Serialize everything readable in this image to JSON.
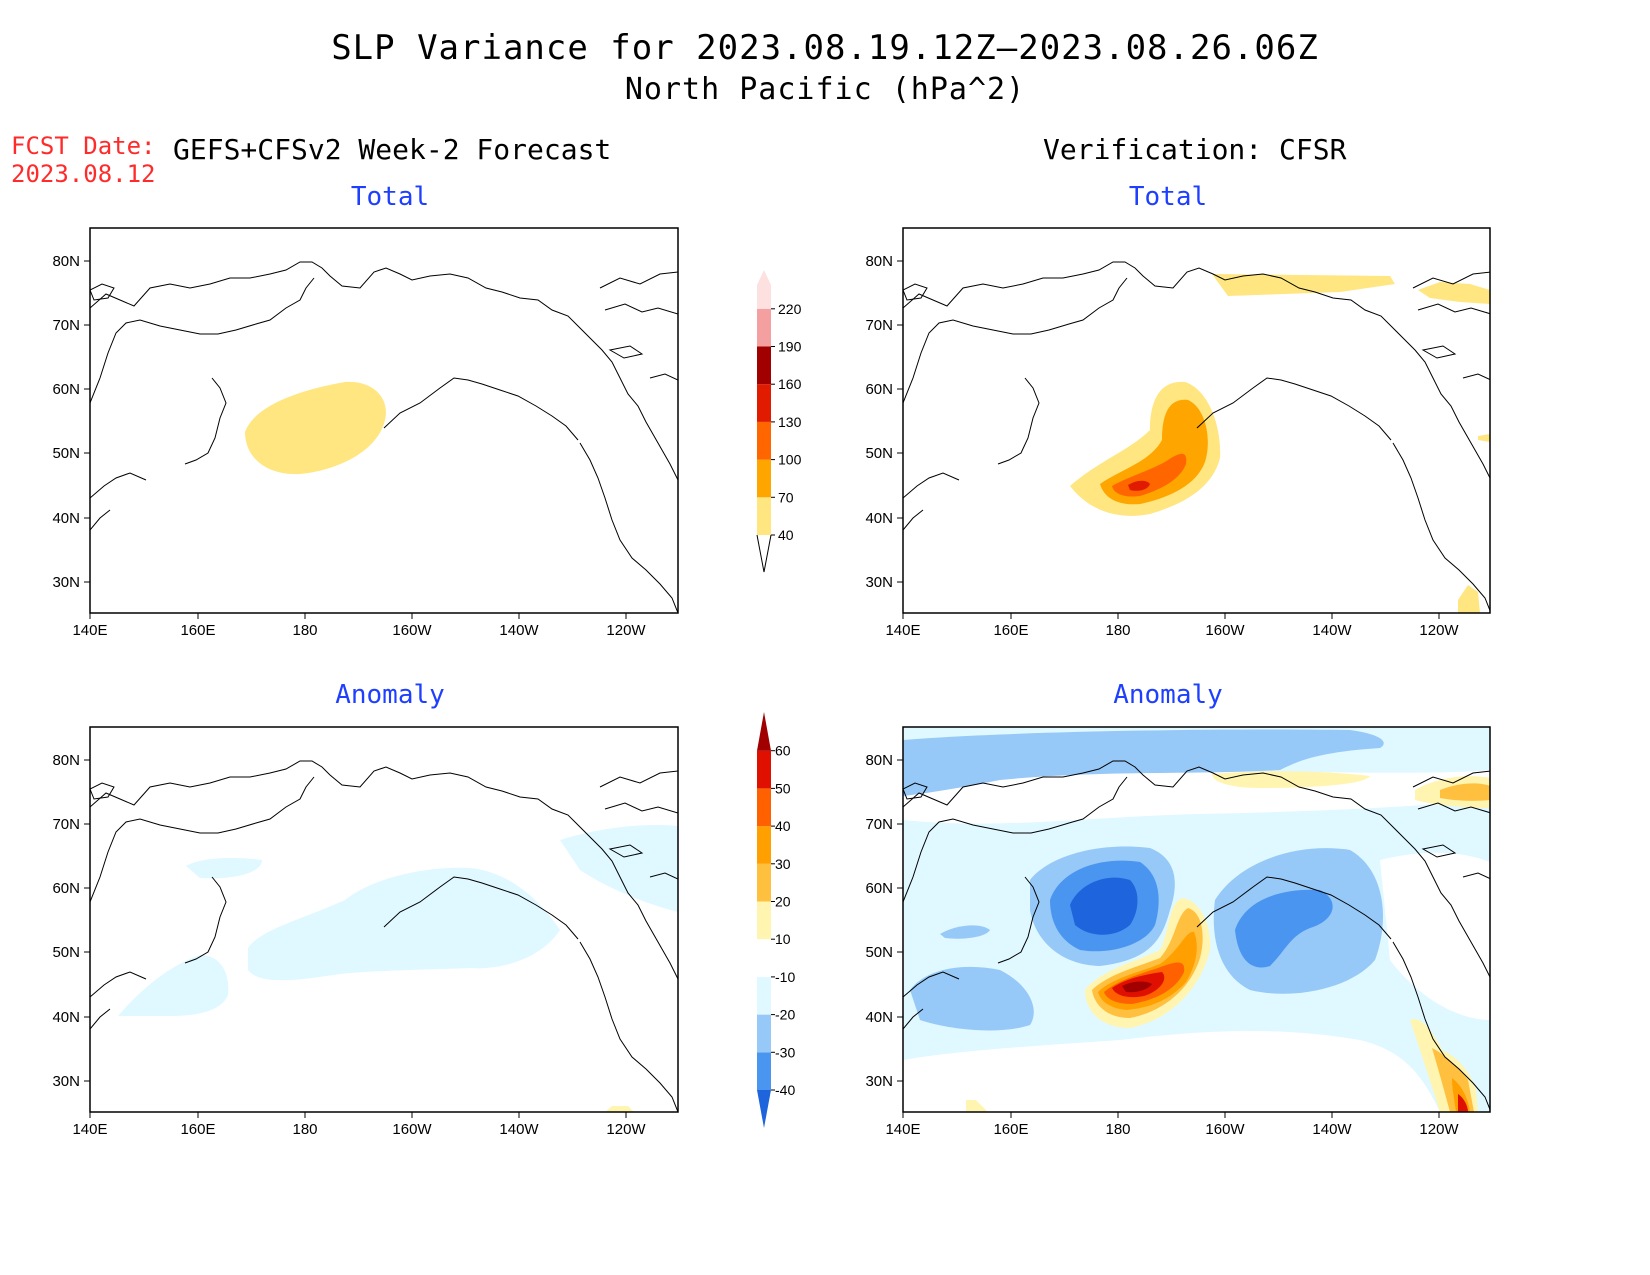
{
  "header": {
    "title": "SLP Variance for 2023.08.19.12Z–2023.08.26.06Z",
    "subtitle": "North Pacific (hPa^2)",
    "fcst_date_label": "FCST Date:",
    "fcst_date_value": "2023.08.12",
    "left_column_title": "GEFS+CFSv2 Week-2 Forecast",
    "right_column_title": "Verification: CFSR"
  },
  "panels": [
    {
      "id": "forecast-total",
      "heading": "Total"
    },
    {
      "id": "verification-total",
      "heading": "Total"
    },
    {
      "id": "forecast-anomaly",
      "heading": "Anomaly"
    },
    {
      "id": "verification-anomaly",
      "heading": "Anomaly"
    }
  ],
  "axes": {
    "lon_ticks": [
      "140E",
      "160E",
      "180",
      "160W",
      "140W",
      "120W"
    ],
    "lat_ticks": [
      "80N",
      "70N",
      "60N",
      "50N",
      "40N",
      "30N"
    ]
  },
  "colorbars": {
    "total": {
      "levels": [
        "40",
        "70",
        "100",
        "130",
        "160",
        "190",
        "220"
      ],
      "colors": [
        "#ffe680",
        "#ffa500",
        "#ff6600",
        "#e01b00",
        "#a00000",
        "#f4a0a0",
        "#fde0e0"
      ]
    },
    "anomaly": {
      "levels": [
        "-40",
        "-30",
        "-20",
        "-10",
        "10",
        "20",
        "30",
        "40",
        "50",
        "60"
      ],
      "colors": [
        "#1e64dc",
        "#4a95f0",
        "#96c8f8",
        "#e0f8ff",
        "#ffffff",
        "#fff5b0",
        "#ffc040",
        "#ffa000",
        "#ff6000",
        "#e01000",
        "#a00000"
      ]
    }
  }
}
